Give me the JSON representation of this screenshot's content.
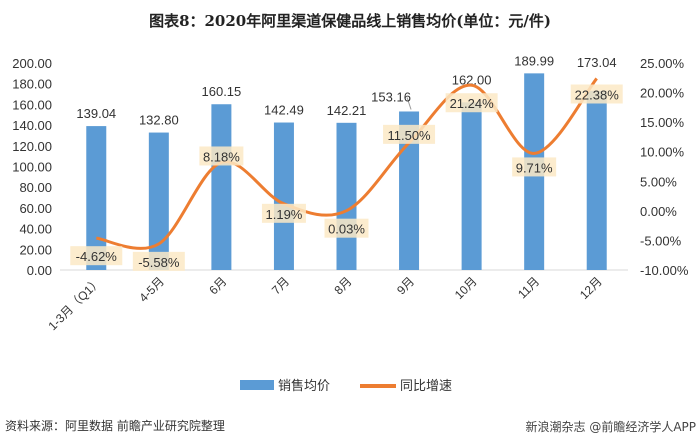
{
  "chart_data": {
    "type": "bar+line",
    "title": "图表8：2020年阿里渠道保健品线上销售均价(单位：元/件)",
    "categories": [
      "1-3月（Q1）",
      "4-5月",
      "6月",
      "7月",
      "8月",
      "9月",
      "10月",
      "11月",
      "12月"
    ],
    "series": [
      {
        "name": "销售均价",
        "type": "bar",
        "axis": "left",
        "color": "#5B9BD5",
        "values": [
          139.04,
          132.8,
          160.15,
          142.49,
          142.21,
          153.16,
          162.0,
          189.99,
          173.04
        ],
        "labels": [
          "139.04",
          "132.80",
          "160.15",
          "142.49",
          "142.21",
          "153.16",
          "162.00",
          "189.99",
          "173.04"
        ]
      },
      {
        "name": "同比增速",
        "type": "line",
        "axis": "right",
        "color": "#ED7D31",
        "values": [
          -4.62,
          -5.58,
          8.18,
          1.19,
          0.03,
          11.5,
          21.24,
          9.71,
          22.38
        ],
        "labels": [
          "-4.62%",
          "-5.58%",
          "8.18%",
          "1.19%",
          "0.03%",
          "11.50%",
          "21.24%",
          "9.71%",
          "22.38%"
        ]
      }
    ],
    "left_axis": {
      "ylim": [
        0,
        200
      ],
      "ticks": [
        "0.00",
        "20.00",
        "40.00",
        "60.00",
        "80.00",
        "100.00",
        "120.00",
        "140.00",
        "160.00",
        "180.00",
        "200.00"
      ]
    },
    "right_axis": {
      "ylim": [
        -10,
        25
      ],
      "ticks": [
        "-10.00%",
        "-5.00%",
        "0.00%",
        "5.00%",
        "10.00%",
        "15.00%",
        "20.00%",
        "25.00%"
      ]
    },
    "legend": "bottom",
    "grid": false
  },
  "source": "资料来源：阿里数据 前瞻产业研究院整理",
  "watermark": "新浪潮杂志 @前瞻经济学人APP"
}
